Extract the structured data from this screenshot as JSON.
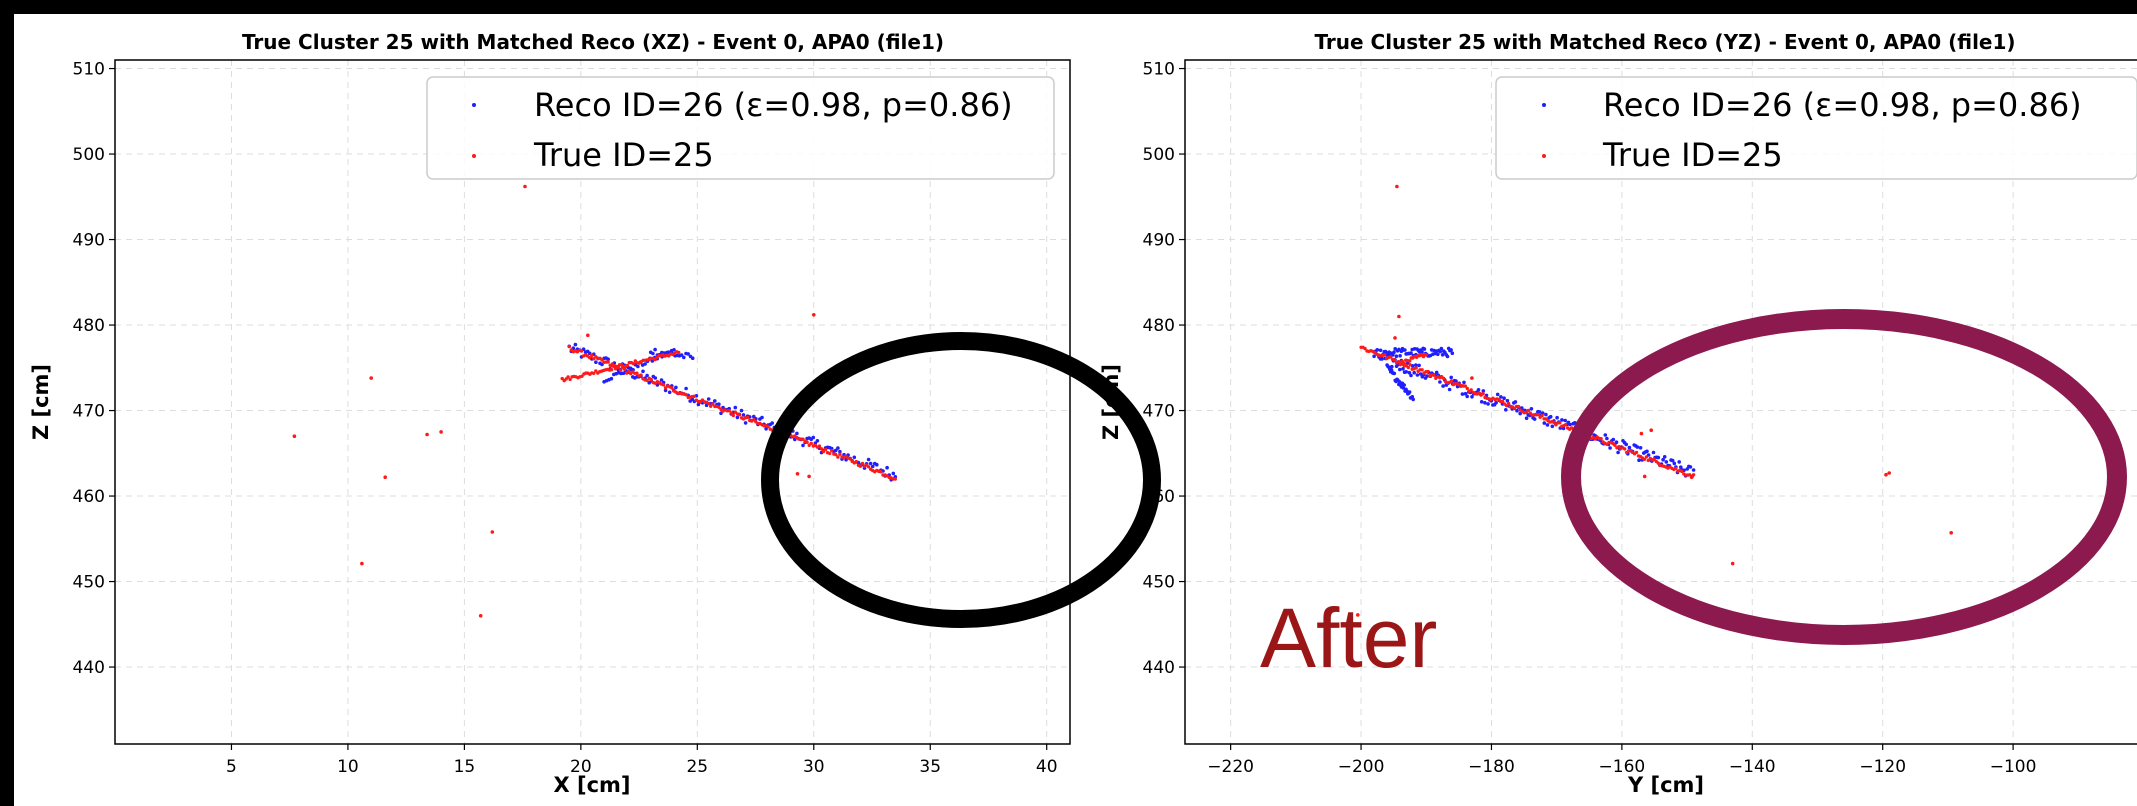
{
  "annotation_text": "After",
  "colors": {
    "reco": "#1f1fff",
    "true": "#ff1a1a",
    "ellipse_left": "#000000",
    "ellipse_right": "#8c1a4f",
    "annotation": "#9b1717"
  },
  "chart_data": [
    {
      "type": "scatter",
      "title": "True Cluster 25 with Matched Reco (XZ) - Event 0, APA0 (file1)",
      "xlabel": "X [cm]",
      "ylabel": "Z [cm]",
      "xlim": [
        0,
        41
      ],
      "ylim": [
        431,
        511
      ],
      "xticks": [
        5,
        10,
        15,
        20,
        25,
        30,
        35,
        40
      ],
      "yticks": [
        440,
        450,
        460,
        470,
        480,
        490,
        500,
        510
      ],
      "grid": true,
      "legend_position": "top-right",
      "series": [
        {
          "name": "Reco ID=26 (ε=0.98, p=0.86)",
          "color": "#1f1fff",
          "segments": [
            {
              "x0": 19.5,
              "y0": 477.3,
              "x1": 33.5,
              "y1": 462.4,
              "w": 1.4,
              "n": 160
            },
            {
              "x0": 21.0,
              "y0": 473.6,
              "x1": 24.0,
              "y1": 477.0,
              "w": 0.6,
              "n": 30
            },
            {
              "x0": 23.0,
              "y0": 477.0,
              "x1": 24.8,
              "y1": 476.2,
              "w": 0.8,
              "n": 20
            }
          ]
        },
        {
          "name": "True ID=25",
          "color": "#ff1a1a",
          "segments": [
            {
              "x0": 19.5,
              "y0": 477.3,
              "x1": 33.5,
              "y1": 462.1,
              "w": 0.5,
              "n": 160
            },
            {
              "x0": 19.2,
              "y0": 473.6,
              "x1": 24.2,
              "y1": 476.8,
              "w": 0.4,
              "n": 60
            }
          ],
          "points": [
            [
              7.7,
              467.0
            ],
            [
              11.0,
              473.8
            ],
            [
              11.6,
              462.2
            ],
            [
              13.4,
              467.2
            ],
            [
              14.0,
              467.5
            ],
            [
              10.6,
              452.1
            ],
            [
              16.2,
              455.8
            ],
            [
              15.7,
              446.0
            ],
            [
              17.6,
              496.2
            ],
            [
              20.3,
              478.8
            ],
            [
              30.0,
              481.2
            ],
            [
              29.3,
              462.6
            ],
            [
              29.8,
              462.3
            ]
          ]
        }
      ]
    },
    {
      "type": "scatter",
      "title": "True Cluster 25 with Matched Reco (YZ) - Event 0, APA0 (file1)",
      "xlabel": "Y [cm]",
      "ylabel": "Z [cm]",
      "xlim": [
        -227,
        -81
      ],
      "ylim": [
        431,
        511
      ],
      "xticks": [
        -220,
        -200,
        -180,
        -160,
        -140,
        -120,
        -100
      ],
      "yticks": [
        440,
        450,
        460,
        470,
        480,
        490,
        500,
        510
      ],
      "grid": true,
      "legend_position": "top-right",
      "series": [
        {
          "name": "Reco ID=26 (ε=0.98, p=0.86)",
          "color": "#1f1fff",
          "segments": [
            {
              "x0": -198,
              "y0": 476.5,
              "x1": -149,
              "y1": 462.6,
              "w": 1.6,
              "n": 200
            },
            {
              "x0": -197,
              "y0": 476.8,
              "x1": -186,
              "y1": 476.8,
              "w": 1.0,
              "n": 60
            },
            {
              "x0": -196,
              "y0": 475.0,
              "x1": -192,
              "y1": 471.5,
              "w": 0.8,
              "n": 30
            }
          ]
        },
        {
          "name": "True ID=25",
          "color": "#ff1a1a",
          "segments": [
            {
              "x0": -200,
              "y0": 477.4,
              "x1": -149,
              "y1": 462.3,
              "w": 0.5,
              "n": 170
            },
            {
              "x0": -194,
              "y0": 475.5,
              "x1": -190,
              "y1": 476.6,
              "w": 0.4,
              "n": 20
            }
          ],
          "points": [
            [
              -194.5,
              496.2
            ],
            [
              -194.2,
              481.0
            ],
            [
              -194.8,
              478.5
            ],
            [
              -183.0,
              473.8
            ],
            [
              -157.0,
              467.3
            ],
            [
              -155.5,
              467.7
            ],
            [
              -156.5,
              462.3
            ],
            [
              -143.0,
              452.1
            ],
            [
              -119.5,
              462.5
            ],
            [
              -119.0,
              462.7
            ],
            [
              -109.5,
              455.7
            ],
            [
              -200.5,
              446.1
            ]
          ]
        }
      ]
    }
  ]
}
